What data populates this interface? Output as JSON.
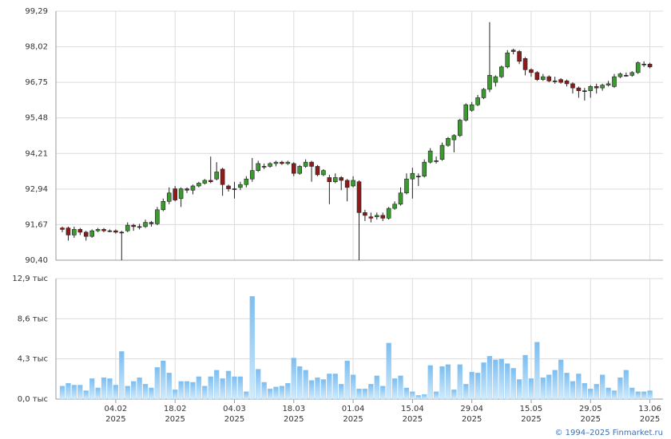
{
  "chart_data": [
    {
      "type": "candlestick",
      "open": [
        91.55,
        91.55,
        91.3,
        91.5,
        91.4,
        91.25,
        91.45,
        91.5,
        91.45,
        91.45,
        91.4,
        91.45,
        91.65,
        91.6,
        91.6,
        91.75,
        91.7,
        92.2,
        92.5,
        92.95,
        92.6,
        92.95,
        92.9,
        93.05,
        93.15,
        93.25,
        93.3,
        93.65,
        93.05,
        92.95,
        93.0,
        93.1,
        93.3,
        93.6,
        93.75,
        93.75,
        93.85,
        93.9,
        93.85,
        93.85,
        93.5,
        93.75,
        93.9,
        93.75,
        93.45,
        93.35,
        93.2,
        93.35,
        93.25,
        93.05,
        93.2,
        92.1,
        91.95,
        91.95,
        92.0,
        91.9,
        92.25,
        92.4,
        92.8,
        93.3,
        93.4,
        93.4,
        93.9,
        93.95,
        94.0,
        94.5,
        94.7,
        94.85,
        95.4,
        95.75,
        95.95,
        96.2,
        96.5,
        96.75,
        96.95,
        97.3,
        97.9,
        97.85,
        97.6,
        97.2,
        97.1,
        96.85,
        96.95,
        96.8,
        96.85,
        96.8,
        96.7,
        96.55,
        96.45,
        96.45,
        96.6,
        96.55,
        96.65,
        96.6,
        96.95,
        97.0,
        97.0,
        97.1,
        97.4,
        97.4
      ],
      "high": [
        91.6,
        91.6,
        91.6,
        91.55,
        91.45,
        91.5,
        91.55,
        91.55,
        91.5,
        91.5,
        91.45,
        91.75,
        91.7,
        91.7,
        91.85,
        91.8,
        92.3,
        92.6,
        93.0,
        93.05,
        93.0,
        93.0,
        93.1,
        93.2,
        93.3,
        94.1,
        93.9,
        93.7,
        93.1,
        93.2,
        93.2,
        93.4,
        94.05,
        93.95,
        93.85,
        93.9,
        93.95,
        93.95,
        93.95,
        93.9,
        93.8,
        94.0,
        93.95,
        93.8,
        93.65,
        93.45,
        93.5,
        93.4,
        93.3,
        93.4,
        93.25,
        92.2,
        92.1,
        92.1,
        92.1,
        92.3,
        92.5,
        93.0,
        93.5,
        93.7,
        93.5,
        94.0,
        94.4,
        94.1,
        94.6,
        94.8,
        94.9,
        95.45,
        96.0,
        96.05,
        96.3,
        96.55,
        98.9,
        97.0,
        97.35,
        97.9,
        97.95,
        97.9,
        97.65,
        97.25,
        97.15,
        97.05,
        97.0,
        96.95,
        96.9,
        96.85,
        96.75,
        96.6,
        96.55,
        96.65,
        96.7,
        96.7,
        96.8,
        97.05,
        97.1,
        97.1,
        97.15,
        97.5,
        97.5,
        97.45
      ],
      "low": [
        91.4,
        91.1,
        91.2,
        91.3,
        91.1,
        91.2,
        91.4,
        91.4,
        91.4,
        91.35,
        90.4,
        91.4,
        91.45,
        91.5,
        91.55,
        91.6,
        91.65,
        92.15,
        92.4,
        92.5,
        92.3,
        92.8,
        92.75,
        93.0,
        93.1,
        93.15,
        93.25,
        92.7,
        92.85,
        92.6,
        92.9,
        93.0,
        93.2,
        93.55,
        93.65,
        93.7,
        93.75,
        93.8,
        93.8,
        93.4,
        93.45,
        93.7,
        93.2,
        93.4,
        93.4,
        92.4,
        93.15,
        92.9,
        92.5,
        93.0,
        90.4,
        91.8,
        91.75,
        91.85,
        91.8,
        91.85,
        92.2,
        92.35,
        92.75,
        92.6,
        93.05,
        93.35,
        93.85,
        93.85,
        93.95,
        94.45,
        94.25,
        94.8,
        95.35,
        95.7,
        95.9,
        96.15,
        96.4,
        96.6,
        96.9,
        97.25,
        97.75,
        97.4,
        97.0,
        96.95,
        96.8,
        96.8,
        96.75,
        96.7,
        96.7,
        96.6,
        96.35,
        96.2,
        96.1,
        96.2,
        96.35,
        96.45,
        96.6,
        96.55,
        96.9,
        96.95,
        96.95,
        97.05,
        97.3,
        97.25
      ],
      "close": [
        91.5,
        91.3,
        91.5,
        91.4,
        91.25,
        91.45,
        91.5,
        91.45,
        91.45,
        91.4,
        91.4,
        91.65,
        91.6,
        91.6,
        91.75,
        91.7,
        92.2,
        92.5,
        92.8,
        92.55,
        92.95,
        92.9,
        93.05,
        93.15,
        93.25,
        93.2,
        93.55,
        93.1,
        92.95,
        92.95,
        93.1,
        93.3,
        93.6,
        93.85,
        93.75,
        93.85,
        93.9,
        93.85,
        93.9,
        93.5,
        93.75,
        93.9,
        93.75,
        93.45,
        93.6,
        93.2,
        93.35,
        93.25,
        93.0,
        93.25,
        92.1,
        92.0,
        91.9,
        92.0,
        91.9,
        92.25,
        92.4,
        92.8,
        93.3,
        93.5,
        93.4,
        93.9,
        94.3,
        93.95,
        94.5,
        94.75,
        94.85,
        95.4,
        95.95,
        95.95,
        96.2,
        96.5,
        97.0,
        96.95,
        97.3,
        97.8,
        97.85,
        97.5,
        97.2,
        97.1,
        96.85,
        96.95,
        96.8,
        96.8,
        96.75,
        96.7,
        96.55,
        96.45,
        96.45,
        96.6,
        96.55,
        96.65,
        96.7,
        96.95,
        97.05,
        97.0,
        97.1,
        97.45,
        97.4,
        97.3
      ],
      "up_color": "#3a9a2e",
      "down_color": "#8e1a1a",
      "ylim": [
        90.4,
        99.29
      ],
      "yticks": [
        {
          "value": 90.4,
          "label": "90,40"
        },
        {
          "value": 91.67,
          "label": "91,67"
        },
        {
          "value": 92.94,
          "label": "92,94"
        },
        {
          "value": 94.21,
          "label": "94,21"
        },
        {
          "value": 95.48,
          "label": "95,48"
        },
        {
          "value": 96.75,
          "label": "96,75"
        },
        {
          "value": 98.02,
          "label": "98,02"
        },
        {
          "value": 99.29,
          "label": "99,29"
        }
      ],
      "grid": true
    },
    {
      "type": "bar",
      "categories": [
        null,
        null,
        null,
        null,
        null,
        null,
        null,
        null,
        null,
        {
          "date": "04.02",
          "year": "2025"
        },
        null,
        null,
        null,
        null,
        null,
        null,
        null,
        null,
        null,
        {
          "date": "18.02",
          "year": "2025"
        },
        null,
        null,
        null,
        null,
        null,
        null,
        null,
        null,
        null,
        {
          "date": "04.03",
          "year": "2025"
        },
        null,
        null,
        null,
        null,
        null,
        null,
        null,
        null,
        null,
        {
          "date": "18.03",
          "year": "2025"
        },
        null,
        null,
        null,
        null,
        null,
        null,
        null,
        null,
        null,
        {
          "date": "01.04",
          "year": "2025"
        },
        null,
        null,
        null,
        null,
        null,
        null,
        null,
        null,
        null,
        {
          "date": "15.04",
          "year": "2025"
        },
        null,
        null,
        null,
        null,
        null,
        null,
        null,
        null,
        null,
        {
          "date": "29.04",
          "year": "2025"
        },
        null,
        null,
        null,
        null,
        null,
        null,
        null,
        null,
        null,
        {
          "date": "15.05",
          "year": "2025"
        },
        null,
        null,
        null,
        null,
        null,
        null,
        null,
        null,
        null,
        {
          "date": "29.05",
          "year": "2025"
        },
        null,
        null,
        null,
        null,
        null,
        null,
        null,
        null,
        null,
        {
          "date": "13.06",
          "year": "2025"
        }
      ],
      "values": [
        1.4,
        1.7,
        1.5,
        1.5,
        0.9,
        2.2,
        1.2,
        2.3,
        2.2,
        1.5,
        5.1,
        1.4,
        1.9,
        2.3,
        1.6,
        1.2,
        3.4,
        4.1,
        2.8,
        1.0,
        1.9,
        1.9,
        1.8,
        2.4,
        1.4,
        2.4,
        3.1,
        2.2,
        3.0,
        2.4,
        2.4,
        0.8,
        11.0,
        3.2,
        1.8,
        1.1,
        1.3,
        1.4,
        1.7,
        4.4,
        3.5,
        3.1,
        2.0,
        2.3,
        2.1,
        2.7,
        2.7,
        1.6,
        4.1,
        2.6,
        1.1,
        1.1,
        1.6,
        2.5,
        1.4,
        6.0,
        2.2,
        2.5,
        1.2,
        0.8,
        0.4,
        0.5,
        3.6,
        0.8,
        3.5,
        3.7,
        1.0,
        3.7,
        1.6,
        2.9,
        2.8,
        3.9,
        4.6,
        4.2,
        4.3,
        3.8,
        3.3,
        2.1,
        4.7,
        2.2,
        6.1,
        2.3,
        2.6,
        3.1,
        4.2,
        2.8,
        1.9,
        2.7,
        1.7,
        1.1,
        1.6,
        2.6,
        1.2,
        0.9,
        2.3,
        3.1,
        1.2,
        0.8,
        0.8,
        0.9
      ],
      "color": "#8ec9f2",
      "ylim": [
        0,
        12.9
      ],
      "yticks": [
        {
          "value": 0,
          "label": "0,0 тыс"
        },
        {
          "value": 4.3,
          "label": "4,3 тыс"
        },
        {
          "value": 8.6,
          "label": "8,6 тыс"
        },
        {
          "value": 12.9,
          "label": "12,9 тыс"
        }
      ],
      "grid": true
    }
  ],
  "credit": "© 1994–2025 Finmarket.ru"
}
